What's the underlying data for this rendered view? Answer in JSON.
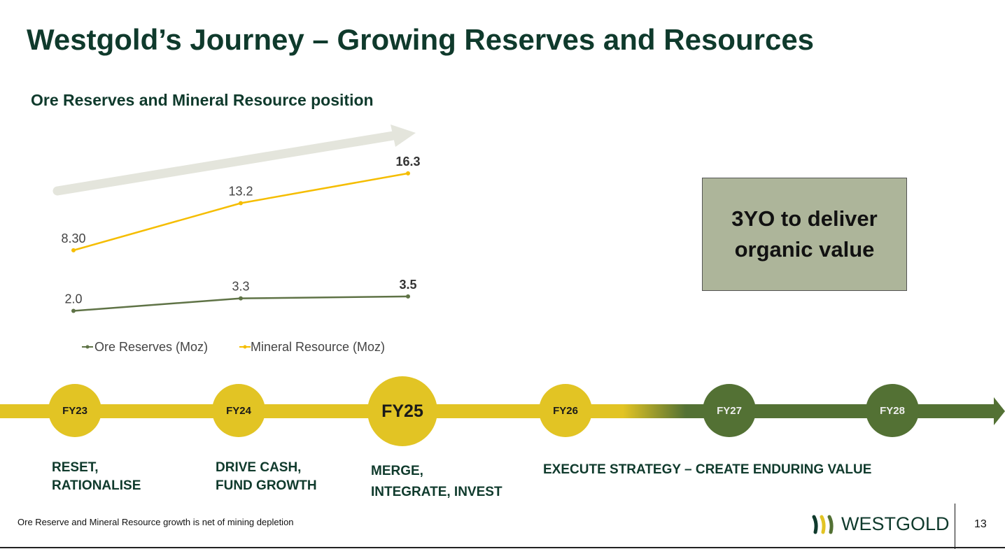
{
  "title": "Westgold’s Journey – Growing Reserves and Resources",
  "subtitle": "Ore Reserves and Mineral Resource position",
  "callout": "3YO to deliver\norganic value",
  "chart_data": {
    "type": "line",
    "categories": [
      "FY23",
      "FY24",
      "FY25"
    ],
    "series": [
      {
        "name": "Ore Reserves (Moz)",
        "values": [
          2.0,
          3.3,
          3.5
        ],
        "labels": [
          "2.0",
          "3.3",
          "3.5"
        ],
        "color": "#5f7346"
      },
      {
        "name": "Mineral Resource (Moz)",
        "values": [
          8.3,
          13.2,
          16.3
        ],
        "labels": [
          "8.30",
          "13.2",
          "16.3"
        ],
        "color": "#f5bd00"
      }
    ],
    "legend_position": "bottom",
    "grid": false,
    "axes_visible": false,
    "trend_arrow_color": "#e4e5dc"
  },
  "timeline": {
    "milestones": [
      {
        "label": "FY23",
        "color": "#e2c424"
      },
      {
        "label": "FY24",
        "color": "#e2c424"
      },
      {
        "label": "FY25",
        "color": "#e2c424"
      },
      {
        "label": "FY26",
        "color": "#e2c424"
      },
      {
        "label": "FY27",
        "color": "#537134"
      },
      {
        "label": "FY28",
        "color": "#537134"
      }
    ],
    "phases": [
      "RESET,\nRATIONALISE",
      "DRIVE CASH,\nFUND GROWTH",
      "MERGE,\nINTEGRATE, INVEST",
      "EXECUTE STRATEGY – CREATE ENDURING VALUE"
    ]
  },
  "footnote": "Ore Reserve and Mineral Resource growth is net of mining depletion",
  "logo": "WESTGOLD",
  "page_number": "13"
}
